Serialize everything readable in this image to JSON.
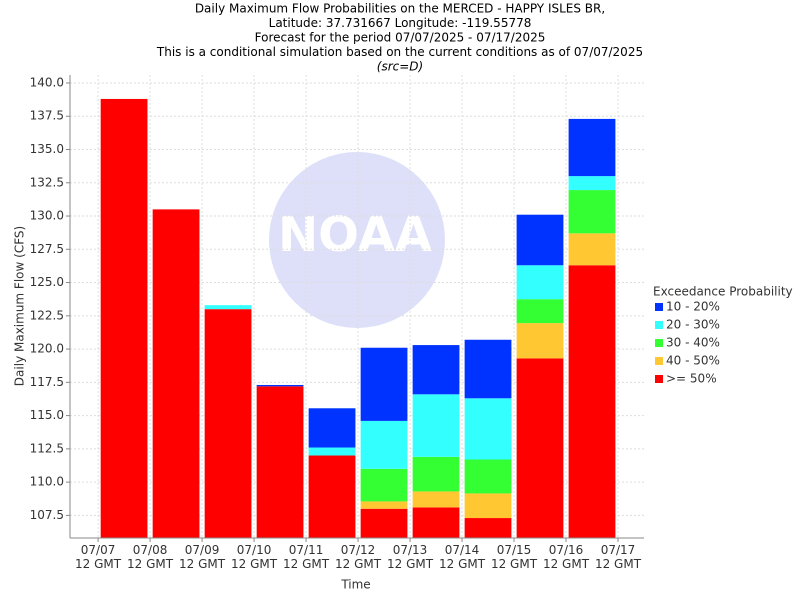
{
  "chart_data": {
    "type": "bar",
    "title": [
      "Daily Maximum Flow Probabilities on the MERCED - HAPPY ISLES BR,",
      "Latitude: 37.731667 Longitude: -119.55778",
      "Forecast for the period 07/07/2025 - 07/17/2025",
      "This is a conditional simulation based on the current conditions as of 07/07/2025",
      "(src=D)"
    ],
    "watermark": "NOAA",
    "x_label": "Time",
    "y_label": "Daily Maximum Flow (CFS)",
    "legend_title": "Exceedance Probability",
    "legend": "right",
    "grid": true,
    "categories": [
      null,
      null,
      null,
      null,
      null,
      null,
      null,
      null,
      null,
      null
    ],
    "series": [
      {
        "name": ">= 50%",
        "color": "#ff0000",
        "values": [
          138.8,
          130.5,
          123.0,
          117.2,
          112.0,
          108.0,
          108.1,
          107.3,
          119.3,
          126.3
        ]
      },
      {
        "name": "40 - 50%",
        "color": "#ffc833",
        "values": [
          138.8,
          130.5,
          123.0,
          117.2,
          112.0,
          108.55,
          109.3,
          109.15,
          121.95,
          128.7
        ]
      },
      {
        "name": "30 - 40%",
        "color": "#33ff33",
        "values": [
          138.8,
          130.5,
          123.0,
          117.2,
          112.0,
          111.0,
          111.9,
          111.7,
          123.75,
          131.95
        ]
      },
      {
        "name": "20 - 30%",
        "color": "#33ffff",
        "values": [
          138.8,
          130.5,
          123.3,
          117.2,
          112.6,
          114.6,
          116.6,
          116.3,
          126.3,
          133.0
        ]
      },
      {
        "name": "10 - 20%",
        "color": "#0033ff",
        "values": [
          138.8,
          130.5,
          123.3,
          117.3,
          115.55,
          120.1,
          120.3,
          120.7,
          130.1,
          137.3
        ]
      }
    ],
    "xlim": [
      -0.54,
      10.5
    ],
    "xticks": [
      {
        "value": 0,
        "label": "07/07\n12 GMT"
      },
      {
        "value": 1,
        "label": "07/08\n12 GMT"
      },
      {
        "value": 2,
        "label": "07/09\n12 GMT"
      },
      {
        "value": 3,
        "label": "07/10\n12 GMT"
      },
      {
        "value": 4,
        "label": "07/11\n12 GMT"
      },
      {
        "value": 5,
        "label": "07/12\n12 GMT"
      },
      {
        "value": 6,
        "label": "07/13\n12 GMT"
      },
      {
        "value": 7,
        "label": "07/14\n12 GMT"
      },
      {
        "value": 8,
        "label": "07/15\n12 GMT"
      },
      {
        "value": 9,
        "label": "07/16\n12 GMT"
      },
      {
        "value": 10,
        "label": "07/17\n12 GMT"
      }
    ],
    "ylim": [
      105.8,
      140.6
    ],
    "yticks": [
      107.5,
      {
        "value": 110,
        "label": "110.0"
      },
      112.5,
      {
        "value": 115,
        "label": "115.0"
      },
      117.5,
      {
        "value": 120,
        "label": "120.0"
      },
      122.5,
      {
        "value": 125,
        "label": "125.0"
      },
      127.5,
      {
        "value": 130,
        "label": "130.0"
      },
      132.5,
      {
        "value": 135,
        "label": "135.0"
      },
      137.5,
      {
        "value": 140,
        "label": "140.0"
      }
    ]
  }
}
